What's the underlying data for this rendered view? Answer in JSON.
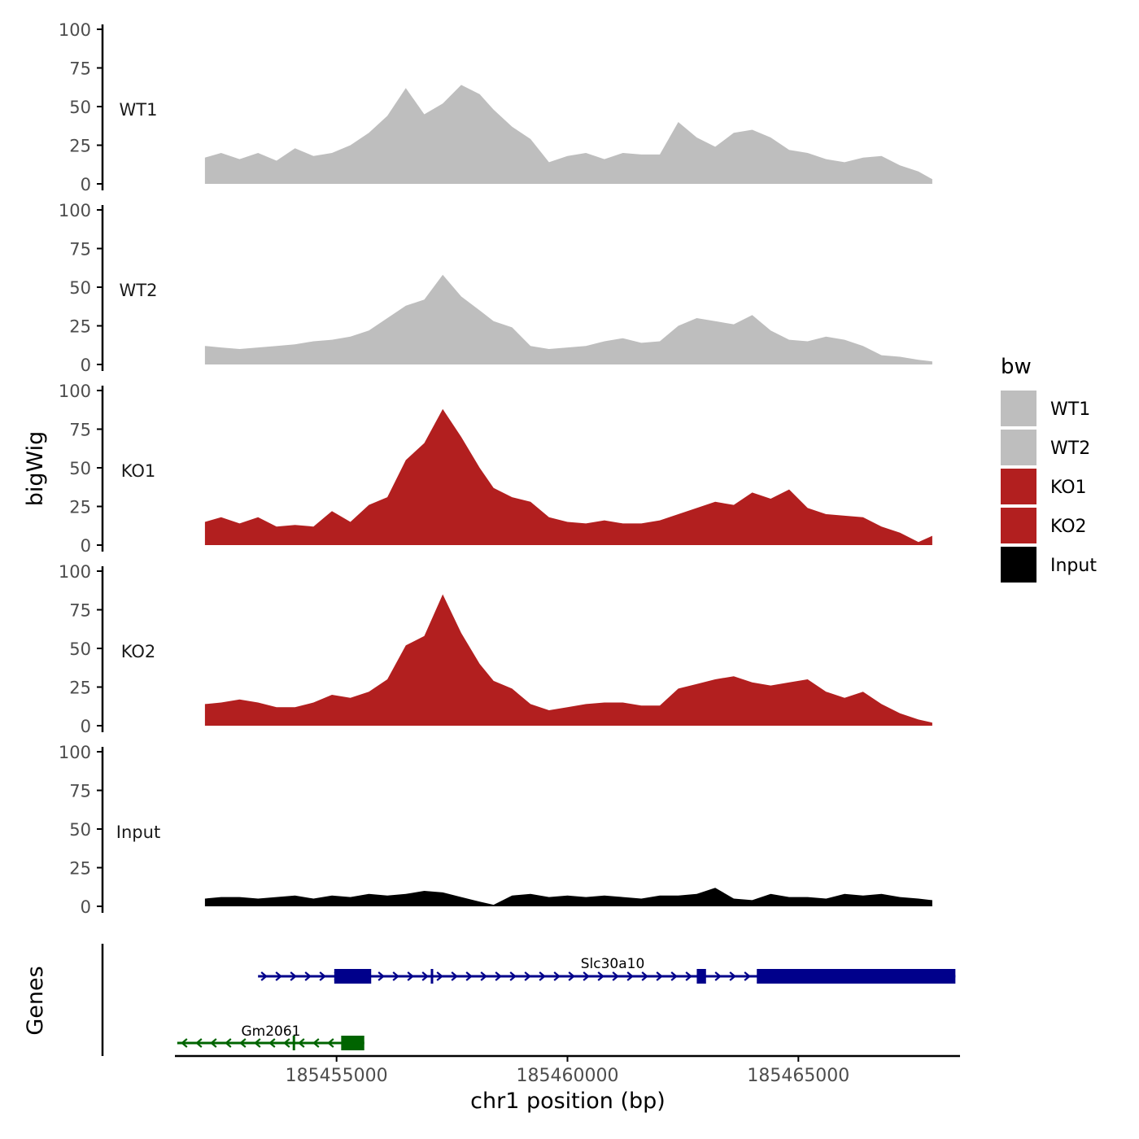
{
  "chart_data": {
    "type": "area",
    "y_axis_label": "bigWig",
    "genes_axis_label": "Genes",
    "x_axis_label": "chr1 position (bp)",
    "x_range": [
      185451500,
      185468500
    ],
    "x_ticks": [
      185455000,
      185460000,
      185465000
    ],
    "x_tick_labels": [
      "185455000",
      "185460000",
      "185465000"
    ],
    "y_ticks": [
      0,
      25,
      50,
      75,
      100
    ],
    "y_tick_labels": [
      "0",
      "25",
      "50",
      "75",
      "100"
    ],
    "ylim": [
      0,
      100
    ],
    "legend": {
      "title": "bw",
      "position": "right",
      "items": [
        {
          "label": "WT1",
          "color": "#bebebe"
        },
        {
          "label": "WT2",
          "color": "#bebebe"
        },
        {
          "label": "KO1",
          "color": "#b21f1f"
        },
        {
          "label": "KO2",
          "color": "#b21f1f"
        },
        {
          "label": "Input",
          "color": "#000000"
        }
      ]
    },
    "tracks": [
      {
        "name": "WT1",
        "color": "#bebebe",
        "x": [
          185452150,
          185452500,
          185452900,
          185453300,
          185453700,
          185454100,
          185454500,
          185454900,
          185455300,
          185455700,
          185456100,
          185456500,
          185456900,
          185457300,
          185457700,
          185458100,
          185458400,
          185458800,
          185459200,
          185459600,
          185460000,
          185460400,
          185460800,
          185461200,
          185461600,
          185462000,
          185462400,
          185462800,
          185463200,
          185463600,
          185464000,
          185464400,
          185464800,
          185465200,
          185465600,
          185466000,
          185466400,
          185466800,
          185467200,
          185467600,
          185467900
        ],
        "values": [
          17,
          20,
          16,
          20,
          15,
          23,
          18,
          20,
          25,
          33,
          44,
          62,
          45,
          52,
          64,
          58,
          48,
          37,
          29,
          14,
          18,
          20,
          16,
          20,
          19,
          19,
          40,
          30,
          24,
          33,
          35,
          30,
          22,
          20,
          16,
          14,
          17,
          18,
          12,
          8,
          3
        ]
      },
      {
        "name": "WT2",
        "color": "#bebebe",
        "x": [
          185452150,
          185452500,
          185452900,
          185453300,
          185453700,
          185454100,
          185454500,
          185454900,
          185455300,
          185455700,
          185456100,
          185456500,
          185456900,
          185457300,
          185457700,
          185458100,
          185458400,
          185458800,
          185459200,
          185459600,
          185460000,
          185460400,
          185460800,
          185461200,
          185461600,
          185462000,
          185462400,
          185462800,
          185463200,
          185463600,
          185464000,
          185464400,
          185464800,
          185465200,
          185465600,
          185466000,
          185466400,
          185466800,
          185467200,
          185467600,
          185467900
        ],
        "values": [
          12,
          11,
          10,
          11,
          12,
          13,
          15,
          16,
          18,
          22,
          30,
          38,
          42,
          58,
          44,
          35,
          28,
          24,
          12,
          10,
          11,
          12,
          15,
          17,
          14,
          15,
          25,
          30,
          28,
          26,
          32,
          22,
          16,
          15,
          18,
          16,
          12,
          6,
          5,
          3,
          2
        ]
      },
      {
        "name": "KO1",
        "color": "#b21f1f",
        "x": [
          185452150,
          185452500,
          185452900,
          185453300,
          185453700,
          185454100,
          185454500,
          185454900,
          185455300,
          185455700,
          185456100,
          185456500,
          185456900,
          185457300,
          185457700,
          185458100,
          185458400,
          185458800,
          185459200,
          185459600,
          185460000,
          185460400,
          185460800,
          185461200,
          185461600,
          185462000,
          185462400,
          185462800,
          185463200,
          185463600,
          185464000,
          185464400,
          185464800,
          185465200,
          185465600,
          185466000,
          185466400,
          185466800,
          185467200,
          185467600,
          185467900
        ],
        "values": [
          15,
          18,
          14,
          18,
          12,
          13,
          12,
          22,
          15,
          26,
          31,
          55,
          66,
          88,
          70,
          50,
          37,
          31,
          28,
          18,
          15,
          14,
          16,
          14,
          14,
          16,
          20,
          24,
          28,
          26,
          34,
          30,
          36,
          24,
          20,
          19,
          18,
          12,
          8,
          2,
          6
        ]
      },
      {
        "name": "KO2",
        "color": "#b21f1f",
        "x": [
          185452150,
          185452500,
          185452900,
          185453300,
          185453700,
          185454100,
          185454500,
          185454900,
          185455300,
          185455700,
          185456100,
          185456500,
          185456900,
          185457300,
          185457700,
          185458100,
          185458400,
          185458800,
          185459200,
          185459600,
          185460000,
          185460400,
          185460800,
          185461200,
          185461600,
          185462000,
          185462400,
          185462800,
          185463200,
          185463600,
          185464000,
          185464400,
          185464800,
          185465200,
          185465600,
          185466000,
          185466400,
          185466800,
          185467200,
          185467600,
          185467900
        ],
        "values": [
          14,
          15,
          17,
          15,
          12,
          12,
          15,
          20,
          18,
          22,
          30,
          52,
          58,
          85,
          60,
          40,
          29,
          24,
          14,
          10,
          12,
          14,
          15,
          15,
          13,
          13,
          24,
          27,
          30,
          32,
          28,
          26,
          28,
          30,
          22,
          18,
          22,
          14,
          8,
          4,
          2
        ]
      },
      {
        "name": "Input",
        "color": "#000000",
        "x": [
          185452150,
          185452500,
          185452900,
          185453300,
          185453700,
          185454100,
          185454500,
          185454900,
          185455300,
          185455700,
          185456100,
          185456500,
          185456900,
          185457300,
          185457700,
          185458100,
          185458400,
          185458800,
          185459200,
          185459600,
          185460000,
          185460400,
          185460800,
          185461200,
          185461600,
          185462000,
          185462400,
          185462800,
          185463200,
          185463600,
          185464000,
          185464400,
          185464800,
          185465200,
          185465600,
          185466000,
          185466400,
          185466800,
          185467200,
          185467600,
          185467900
        ],
        "values": [
          5,
          6,
          6,
          5,
          6,
          7,
          5,
          7,
          6,
          8,
          7,
          8,
          10,
          9,
          6,
          3,
          1,
          7,
          8,
          6,
          7,
          6,
          7,
          6,
          5,
          7,
          7,
          8,
          12,
          5,
          4,
          8,
          6,
          6,
          5,
          8,
          7,
          8,
          6,
          5,
          4
        ]
      }
    ],
    "genes": [
      {
        "name": "Slc30a10",
        "strand": "+",
        "color": "#00008b",
        "start": 185453300,
        "end": 185468400,
        "exons": [
          [
            185454950,
            185455750
          ],
          [
            185457040,
            185457080
          ],
          [
            185462800,
            185463000
          ],
          [
            185464100,
            185468400
          ]
        ]
      },
      {
        "name": "Gm2061",
        "strand": "-",
        "color": "#006400",
        "start": 185451550,
        "end": 185455600,
        "exons": [
          [
            185454050,
            185454100
          ],
          [
            185455100,
            185455600
          ]
        ]
      }
    ]
  }
}
